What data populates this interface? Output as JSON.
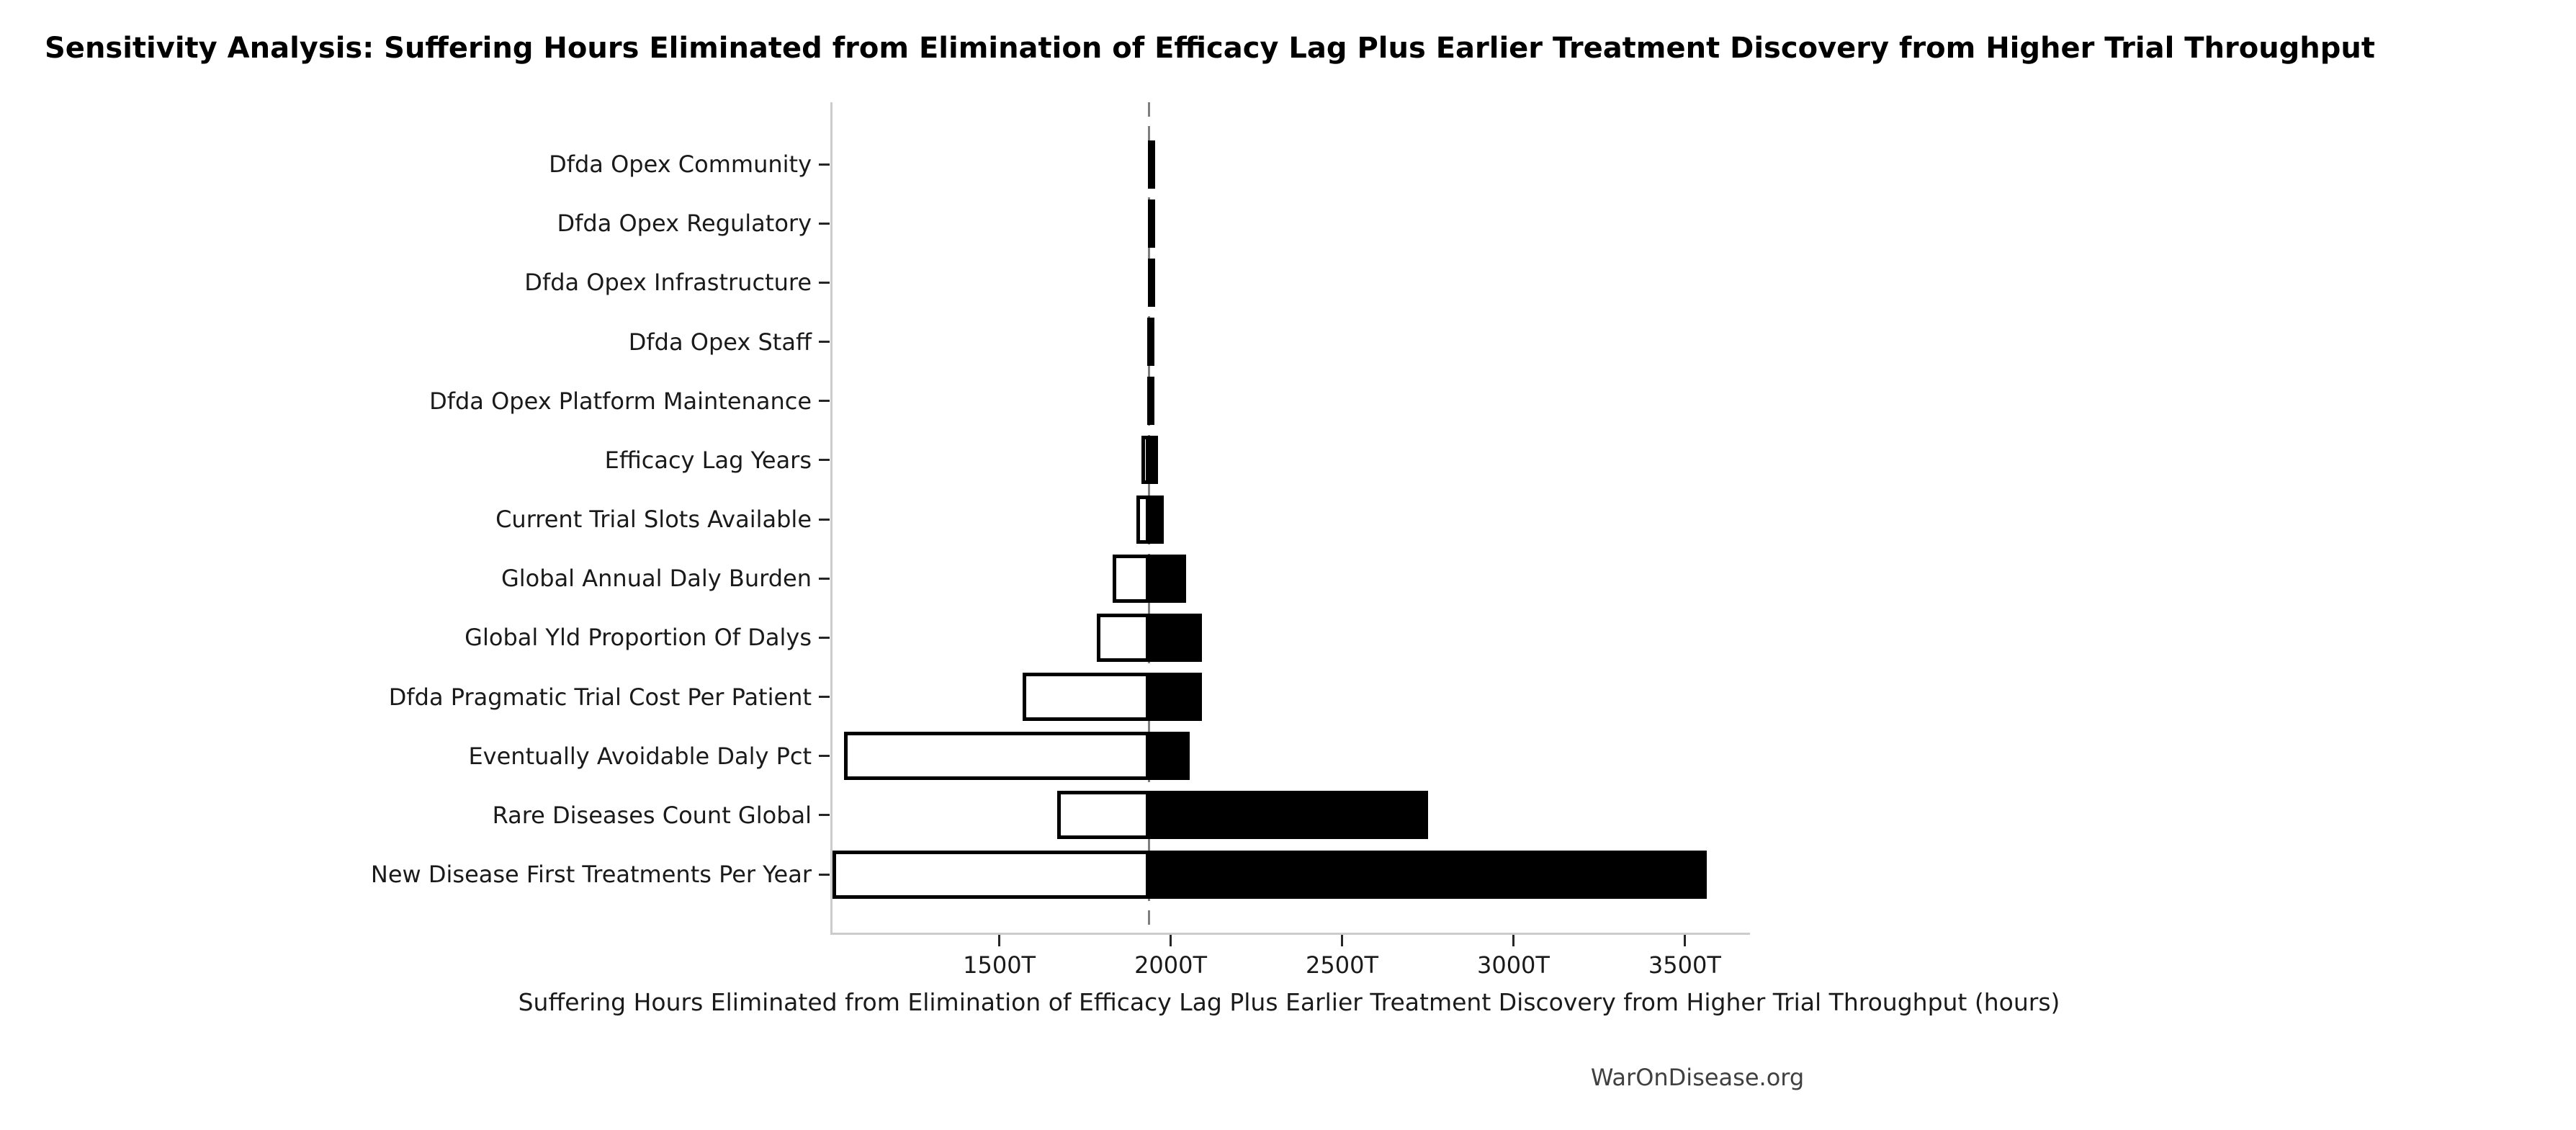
{
  "title": "Sensitivity Analysis: Suffering Hours Eliminated from Elimination of Efficacy Lag Plus Earlier Treatment Discovery from Higher Trial Throughput",
  "x_axis": {
    "label": "Suffering Hours Eliminated from Elimination of Efficacy Lag Plus Earlier Treatment Discovery from Higher Trial Throughput (hours)",
    "tick_labels": [
      "1500T",
      "2000T",
      "2500T",
      "3000T",
      "3500T"
    ],
    "tick_values": [
      1500,
      2000,
      2500,
      3000,
      3500
    ]
  },
  "watermark": "WarOnDisease.org",
  "chart_data": {
    "type": "bar",
    "orientation": "horizontal",
    "title": "Sensitivity Analysis: Suffering Hours Eliminated from Elimination of Efficacy Lag Plus Earlier Treatment Discovery from Higher Trial Throughput",
    "xlabel": "Suffering Hours Eliminated from Elimination of Efficacy Lag Plus Earlier Treatment Discovery from Higher Trial Throughput (hours)",
    "unit": "T (trillion hours)",
    "baseline": 1931,
    "xlim": [
      1007,
      3684
    ],
    "grid": false,
    "legend": null,
    "style_note": "tornado chart: white outlined bar = low-side range, solid black bar = high-side range, gray dashed line = baseline output",
    "bars": [
      {
        "label": "Dfda Opex Community",
        "low": 1928,
        "high": 1935
      },
      {
        "label": "Dfda Opex Regulatory",
        "low": 1927,
        "high": 1936
      },
      {
        "label": "Dfda Opex Infrastructure",
        "low": 1927,
        "high": 1936
      },
      {
        "label": "Dfda Opex Staff",
        "low": 1926,
        "high": 1937
      },
      {
        "label": "Dfda Opex Platform Maintenance",
        "low": 1925,
        "high": 1938
      },
      {
        "label": "Efficacy Lag Years",
        "low": 1909,
        "high": 1956
      },
      {
        "label": "Current Trial Slots Available",
        "low": 1893,
        "high": 1973
      },
      {
        "label": "Global Annual Daly Burden",
        "low": 1825,
        "high": 2038
      },
      {
        "label": "Global Yld Proportion Of Dalys",
        "low": 1778,
        "high": 2084
      },
      {
        "label": "Dfda Pragmatic Trial Cost Per Patient",
        "low": 1561,
        "high": 2084
      },
      {
        "label": "Eventually Avoidable Daly Pct",
        "low": 1040,
        "high": 2050
      },
      {
        "label": "Rare Diseases Count Global",
        "low": 1663,
        "high": 2745
      },
      {
        "label": "New Disease First Treatments Per Year",
        "low": 1007,
        "high": 3557
      }
    ],
    "colors": {
      "low_fill": "#ffffff",
      "high_fill": "#000000",
      "bar_edge": "#000000",
      "baseline_line": "#7f7f7f",
      "spine": "#cccccc",
      "tick": "#262626",
      "text": "#1a1a1a",
      "watermark_text": "#404040",
      "background": "#ffffff"
    }
  }
}
